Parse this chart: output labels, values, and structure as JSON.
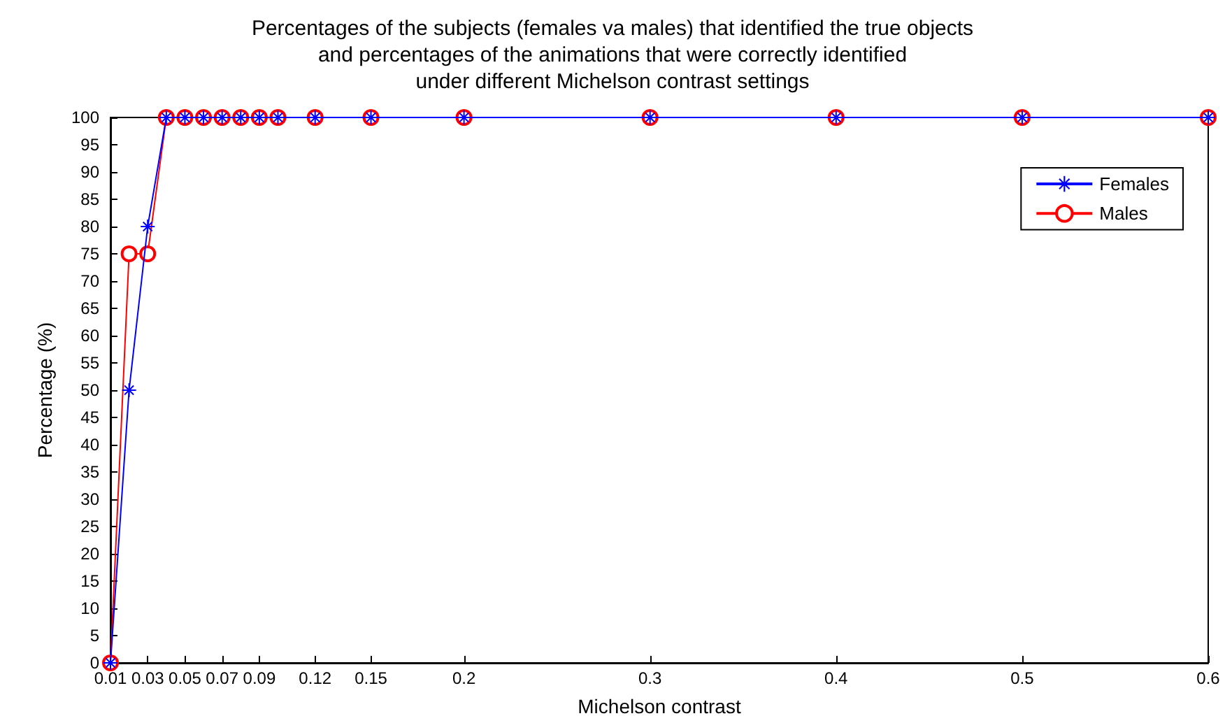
{
  "chart_data": {
    "type": "line",
    "title": "Percentages of the subjects (females va males) that identified the true objects\nand percentages of the animations that were correctly identified\nunder different Michelson contrast settings",
    "xlabel": "Michelson contrast",
    "ylabel": "Percentage (%)",
    "x": [
      0.01,
      0.02,
      0.03,
      0.04,
      0.05,
      0.06,
      0.07,
      0.08,
      0.09,
      0.1,
      0.12,
      0.15,
      0.2,
      0.3,
      0.4,
      0.5,
      0.6
    ],
    "series": [
      {
        "name": "Females",
        "color": "#0000ff",
        "marker": "star",
        "values": [
          0,
          50,
          80,
          100,
          100,
          100,
          100,
          100,
          100,
          100,
          100,
          100,
          100,
          100,
          100,
          100,
          100
        ]
      },
      {
        "name": "Males",
        "color": "#ff0000",
        "marker": "circle",
        "values": [
          0,
          75,
          75,
          100,
          100,
          100,
          100,
          100,
          100,
          100,
          100,
          100,
          100,
          100,
          100,
          100,
          100
        ]
      }
    ],
    "xlim": [
      0.01,
      0.6
    ],
    "xticks": [
      0.01,
      0.03,
      0.05,
      0.07,
      0.09,
      0.12,
      0.15,
      0.2,
      0.3,
      0.4,
      0.5,
      0.6
    ],
    "ylim": [
      0,
      100
    ],
    "yticks": [
      0,
      5,
      10,
      15,
      20,
      25,
      30,
      35,
      40,
      45,
      50,
      55,
      60,
      65,
      70,
      75,
      80,
      85,
      90,
      95,
      100
    ],
    "grid": false,
    "legend": "top right",
    "line_style": "solid"
  }
}
